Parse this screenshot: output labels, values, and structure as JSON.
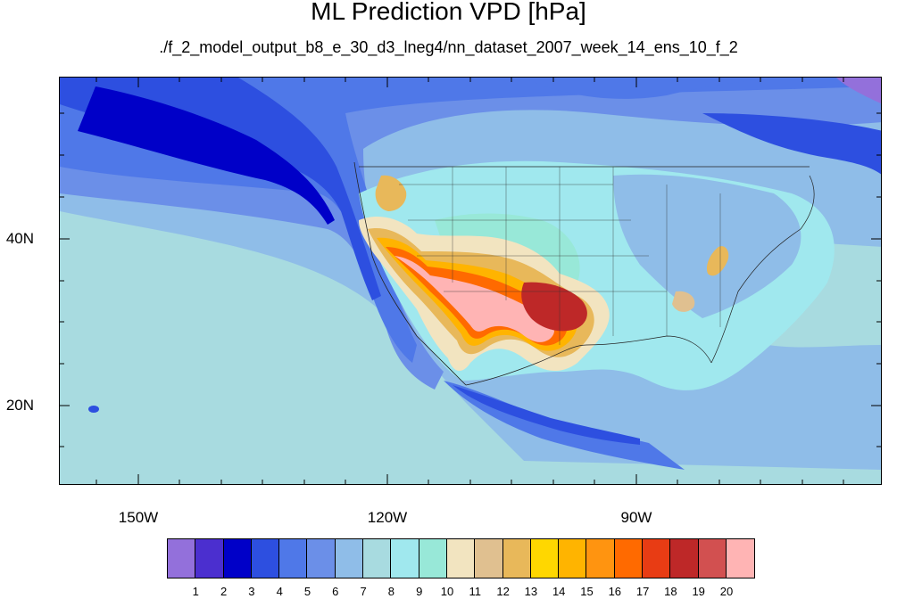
{
  "title": "ML Prediction VPD [hPa]",
  "subtitle": "./f_2_model_output_b8_e_30_d3_lneg4/nn_dataset_2007_week_14_ens_10_f_2",
  "lat_labels": [
    "40N",
    "20N"
  ],
  "lon_labels": [
    "150W",
    "120W",
    "90W"
  ],
  "colorbar": {
    "colors": [
      "#9370db",
      "#4b2fcf",
      "#0000c8",
      "#2d4fe0",
      "#4f78e8",
      "#6b8fe8",
      "#8fbde8",
      "#a8dbe0",
      "#a0e8ee",
      "#98e8d8",
      "#f2e4c0",
      "#e0c090",
      "#e8b85a",
      "#ffd700",
      "#ffb400",
      "#ff9410",
      "#ff6a00",
      "#e83c14",
      "#be2828",
      "#d25050",
      "#ffb4b4"
    ],
    "labels": [
      "1",
      "2",
      "3",
      "4",
      "5",
      "6",
      "7",
      "8",
      "9",
      "10",
      "11",
      "12",
      "13",
      "14",
      "15",
      "16",
      "17",
      "18",
      "19",
      "20"
    ]
  }
}
